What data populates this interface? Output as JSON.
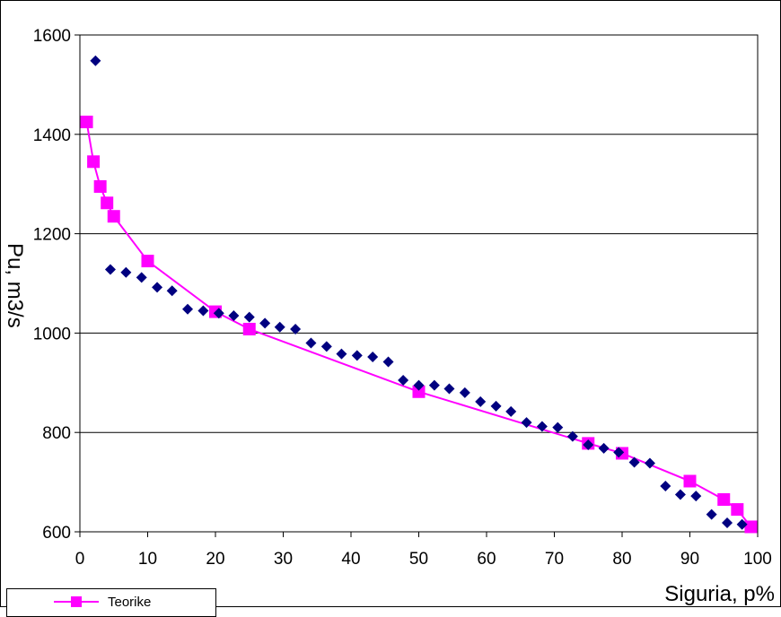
{
  "colors": {
    "observed": "#000080",
    "theoretical": "#FF00FF",
    "grid": "#000000"
  },
  "chart_data": {
    "type": "scatter",
    "xlabel": "Siguria, p%",
    "ylabel": "Pu, m3/s",
    "xlim": [
      0,
      100
    ],
    "ylim": [
      600,
      1600
    ],
    "xticks": [
      "0",
      "10",
      "20",
      "30",
      "40",
      "50",
      "60",
      "70",
      "80",
      "90",
      "100"
    ],
    "yticks": [
      "600",
      "800",
      "1000",
      "1200",
      "1400",
      "1600"
    ],
    "grid": "horizontal",
    "legend": "bottom-left",
    "series": [
      {
        "kind": "scatter",
        "marker": "diamond",
        "x": [
          2.3,
          4.5,
          6.8,
          9.1,
          11.4,
          13.6,
          15.9,
          18.2,
          20.5,
          22.7,
          25.0,
          27.3,
          29.5,
          31.8,
          34.1,
          36.4,
          38.6,
          40.9,
          43.2,
          45.5,
          47.7,
          50.0,
          52.3,
          54.5,
          56.8,
          59.1,
          61.4,
          63.6,
          65.9,
          68.2,
          70.5,
          72.7,
          75.0,
          77.3,
          79.5,
          81.8,
          84.1,
          86.4,
          88.6,
          90.9,
          93.2,
          95.5,
          97.7
        ],
        "y": [
          1548,
          1128,
          1122,
          1112,
          1092,
          1085,
          1048,
          1045,
          1040,
          1035,
          1032,
          1020,
          1012,
          1008,
          980,
          973,
          958,
          955,
          952,
          942,
          905,
          895,
          895,
          888,
          880,
          862,
          853,
          842,
          820,
          812,
          810,
          792,
          775,
          768,
          760,
          740,
          738,
          692,
          675,
          672,
          635,
          618,
          615
        ]
      },
      {
        "kind": "line",
        "marker": "square",
        "name": "Teorike",
        "x": [
          1,
          2,
          3,
          4,
          5,
          10,
          20,
          25,
          50,
          75,
          80,
          90,
          95,
          97,
          99
        ],
        "y": [
          1425,
          1345,
          1295,
          1262,
          1235,
          1145,
          1043,
          1008,
          882,
          778,
          758,
          702,
          665,
          645,
          610
        ]
      }
    ]
  }
}
